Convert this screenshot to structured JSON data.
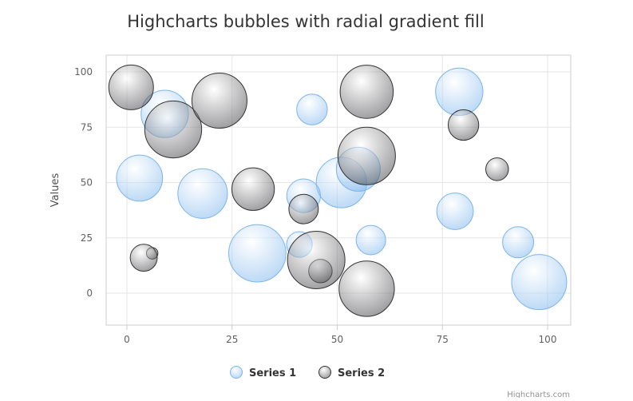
{
  "chart_data": {
    "type": "scatter",
    "subtype": "bubble",
    "title": "Highcharts bubbles with radial gradient fill",
    "xlabel": "",
    "ylabel": "Values",
    "xlim": [
      -5,
      105
    ],
    "ylim": [
      -15,
      108
    ],
    "x_ticks": [
      0,
      25,
      50,
      75,
      100
    ],
    "y_ticks": [
      0,
      25,
      50,
      75,
      100
    ],
    "grid": true,
    "legend_position": "bottom-center",
    "credits": "Highcharts.com",
    "series": [
      {
        "name": "Series 1",
        "color": "#7cb5ec",
        "points": [
          {
            "x": 9,
            "y": 81,
            "z": 63
          },
          {
            "x": 98,
            "y": 5,
            "z": 89
          },
          {
            "x": 51,
            "y": 50,
            "z": 73
          },
          {
            "x": 41,
            "y": 22,
            "z": 14
          },
          {
            "x": 58,
            "y": 24,
            "z": 20
          },
          {
            "x": 78,
            "y": 37,
            "z": 34
          },
          {
            "x": 55,
            "y": 56,
            "z": 53
          },
          {
            "x": 18,
            "y": 45,
            "z": 70
          },
          {
            "x": 42,
            "y": 44,
            "z": 28
          },
          {
            "x": 3,
            "y": 52,
            "z": 59
          },
          {
            "x": 31,
            "y": 18,
            "z": 97
          },
          {
            "x": 79,
            "y": 91,
            "z": 63
          },
          {
            "x": 93,
            "y": 23,
            "z": 23
          },
          {
            "x": 44,
            "y": 83,
            "z": 22
          }
        ]
      },
      {
        "name": "Series 2",
        "color": "#434348",
        "points": [
          {
            "x": 42,
            "y": 38,
            "z": 20
          },
          {
            "x": 6,
            "y": 18,
            "z": 1
          },
          {
            "x": 1,
            "y": 93,
            "z": 55
          },
          {
            "x": 57,
            "y": 2,
            "z": 90
          },
          {
            "x": 80,
            "y": 76,
            "z": 22
          },
          {
            "x": 11,
            "y": 74,
            "z": 96
          },
          {
            "x": 88,
            "y": 56,
            "z": 10
          },
          {
            "x": 30,
            "y": 47,
            "z": 49
          },
          {
            "x": 57,
            "y": 62,
            "z": 98
          },
          {
            "x": 4,
            "y": 16,
            "z": 16
          },
          {
            "x": 46,
            "y": 10,
            "z": 11
          },
          {
            "x": 22,
            "y": 87,
            "z": 89
          },
          {
            "x": 57,
            "y": 91,
            "z": 82
          },
          {
            "x": 45,
            "y": 15,
            "z": 98
          }
        ]
      }
    ]
  }
}
